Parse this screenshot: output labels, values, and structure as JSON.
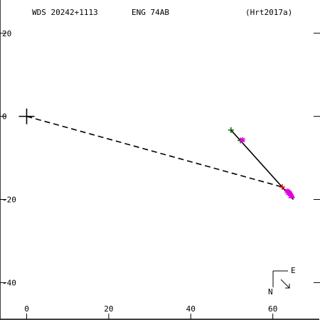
{
  "chart_data": {
    "type": "scatter",
    "header": {
      "left": "WDS 20242+1113",
      "middle": "ENG  74AB",
      "right": "(Hrt2017a)"
    },
    "x_axis": {
      "range": [
        -6.5,
        71.5
      ],
      "ticks": [
        0,
        20,
        40,
        60
      ],
      "tick_labels": [
        "0",
        "20",
        "40",
        "60"
      ]
    },
    "y_axis": {
      "range": [
        -49,
        28
      ],
      "ticks": [
        20,
        0,
        -20,
        -40
      ],
      "tick_labels": [
        "20",
        "0",
        "-20",
        "-40"
      ]
    },
    "primary_marker": {
      "x": 0,
      "y": 0,
      "symbol": "plus"
    },
    "dashed_line": {
      "from": [
        0,
        0
      ],
      "to": [
        62.3,
        -17.0
      ]
    },
    "solid_line": {
      "from": [
        49.8,
        -3.3
      ],
      "to": [
        65.0,
        -20.0
      ]
    },
    "points": [
      {
        "x": 49.8,
        "y": -3.3,
        "symbol": "plus",
        "color": "#006400"
      },
      {
        "x": 52.1,
        "y": -5.8,
        "symbol": "plus",
        "color": "#006400"
      },
      {
        "x": 52.6,
        "y": -5.7,
        "symbol": "star",
        "color": "#e000e0"
      },
      {
        "x": 62.3,
        "y": -17.0,
        "symbol": "plus",
        "color": "#ff0000"
      },
      {
        "x": 63.5,
        "y": -18.0,
        "symbol": "star",
        "color": "#e000e0"
      },
      {
        "x": 64.0,
        "y": -18.3,
        "symbol": "triangle",
        "color": "#e000e0"
      },
      {
        "x": 64.4,
        "y": -18.6,
        "symbol": "triangle",
        "color": "#e000e0"
      },
      {
        "x": 64.6,
        "y": -19.1,
        "symbol": "triangle",
        "color": "#e000e0"
      }
    ],
    "compass": {
      "east_label": "E",
      "north_label": "N"
    }
  }
}
